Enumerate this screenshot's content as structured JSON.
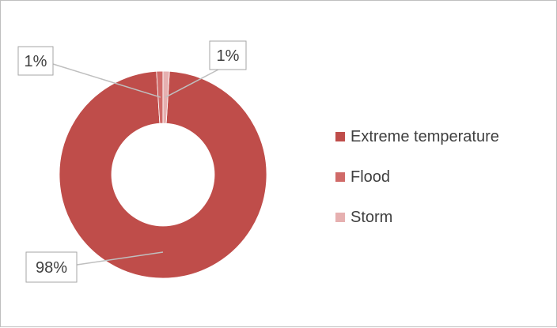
{
  "chart_data": {
    "type": "pie",
    "style": "donut",
    "title": "",
    "categories": [
      "Extreme temperature",
      "Flood",
      "Storm"
    ],
    "values": [
      98,
      1,
      1
    ],
    "data_labels": [
      "98%",
      "1%",
      "1%"
    ],
    "colors": [
      "#bf4d4a",
      "#d06a68",
      "#e6b0b0"
    ],
    "legend_position": "right"
  }
}
